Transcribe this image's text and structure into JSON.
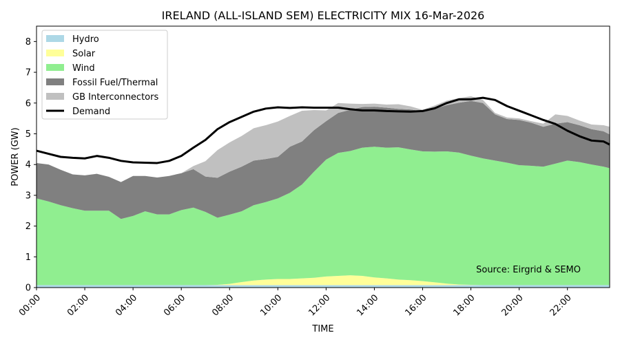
{
  "chart_data": {
    "type": "area",
    "title": "IRELAND (ALL-ISLAND SEM) ELECTRICITY MIX 16-Mar-2026",
    "xlabel": "TIME",
    "ylabel": "POWER (GW)",
    "ylim": [
      0,
      8.5
    ],
    "yticks": [
      "0",
      "1",
      "2",
      "3",
      "4",
      "5",
      "6",
      "7",
      "8"
    ],
    "xlim": [
      "00:00",
      "23:45"
    ],
    "xticks": [
      "00:00",
      "02:00",
      "04:00",
      "06:00",
      "08:00",
      "10:00",
      "12:00",
      "14:00",
      "16:00",
      "18:00",
      "20:00",
      "22:00"
    ],
    "grid": false,
    "legend_position": "top-left",
    "stacked": true,
    "x": [
      "00:00",
      "00:30",
      "01:00",
      "01:30",
      "02:00",
      "02:30",
      "03:00",
      "03:30",
      "04:00",
      "04:30",
      "05:00",
      "05:30",
      "06:00",
      "06:30",
      "07:00",
      "07:30",
      "08:00",
      "08:30",
      "09:00",
      "09:30",
      "10:00",
      "10:30",
      "11:00",
      "11:30",
      "12:00",
      "12:30",
      "13:00",
      "13:30",
      "14:00",
      "14:30",
      "15:00",
      "15:30",
      "16:00",
      "16:30",
      "17:00",
      "17:30",
      "18:00",
      "18:30",
      "19:00",
      "19:30",
      "20:00",
      "20:30",
      "21:00",
      "21:30",
      "22:00",
      "22:30",
      "23:00",
      "23:30",
      "23:45"
    ],
    "series": [
      {
        "name": "Hydro",
        "color": "#add8e6",
        "values": [
          0.08,
          0.08,
          0.08,
          0.08,
          0.08,
          0.08,
          0.08,
          0.08,
          0.08,
          0.08,
          0.08,
          0.08,
          0.08,
          0.08,
          0.08,
          0.08,
          0.08,
          0.08,
          0.08,
          0.08,
          0.08,
          0.08,
          0.08,
          0.08,
          0.08,
          0.08,
          0.08,
          0.08,
          0.08,
          0.08,
          0.08,
          0.08,
          0.08,
          0.08,
          0.08,
          0.08,
          0.08,
          0.08,
          0.08,
          0.08,
          0.08,
          0.08,
          0.08,
          0.08,
          0.08,
          0.08,
          0.08,
          0.08,
          0.08
        ]
      },
      {
        "name": "Solar",
        "color": "#ffff99",
        "values": [
          0,
          0,
          0,
          0,
          0,
          0,
          0,
          0,
          0,
          0,
          0,
          0,
          0,
          0,
          0,
          0.01,
          0.04,
          0.1,
          0.15,
          0.18,
          0.2,
          0.2,
          0.22,
          0.24,
          0.28,
          0.3,
          0.32,
          0.3,
          0.25,
          0.22,
          0.18,
          0.16,
          0.13,
          0.09,
          0.05,
          0.02,
          0.01,
          0,
          0,
          0,
          0,
          0,
          0,
          0,
          0,
          0,
          0,
          0,
          0
        ]
      },
      {
        "name": "Wind",
        "color": "#90ee90",
        "values": [
          2.82,
          2.72,
          2.6,
          2.5,
          2.42,
          2.42,
          2.42,
          2.15,
          2.25,
          2.4,
          2.3,
          2.3,
          2.44,
          2.52,
          2.38,
          2.18,
          2.25,
          2.3,
          2.45,
          2.52,
          2.62,
          2.8,
          3.05,
          3.45,
          3.8,
          4.0,
          4.04,
          4.17,
          4.25,
          4.25,
          4.3,
          4.25,
          4.22,
          4.25,
          4.3,
          4.29,
          4.2,
          4.12,
          4.05,
          3.98,
          3.9,
          3.88,
          3.85,
          3.95,
          4.05,
          4.0,
          3.92,
          3.85,
          3.8
        ]
      },
      {
        "name": "Fossil Fuel/Thermal",
        "color": "#808080",
        "values": [
          1.15,
          1.2,
          1.15,
          1.1,
          1.15,
          1.2,
          1.1,
          1.2,
          1.3,
          1.15,
          1.2,
          1.25,
          1.2,
          1.25,
          1.15,
          1.3,
          1.4,
          1.45,
          1.45,
          1.4,
          1.35,
          1.5,
          1.4,
          1.35,
          1.25,
          1.3,
          1.34,
          1.32,
          1.3,
          1.3,
          1.25,
          1.3,
          1.3,
          1.4,
          1.5,
          1.62,
          1.78,
          1.8,
          1.5,
          1.42,
          1.47,
          1.4,
          1.3,
          1.3,
          1.25,
          1.2,
          1.15,
          1.15,
          1.1
        ]
      },
      {
        "name": "GB Interconnectors",
        "color": "#c0c0c0",
        "values": [
          0,
          0,
          0,
          0,
          0,
          0,
          0,
          0,
          0,
          0,
          0,
          0,
          0,
          0.1,
          0.5,
          0.9,
          0.95,
          1.0,
          1.05,
          1.1,
          1.15,
          1.0,
          1.0,
          0.65,
          0.35,
          0.32,
          0.2,
          0.1,
          0.1,
          0.1,
          0.15,
          0.1,
          0.05,
          0.1,
          0.15,
          0.15,
          0.15,
          0.1,
          0.05,
          0.05,
          0.05,
          0.05,
          0.1,
          0.3,
          0.2,
          0.15,
          0.15,
          0.2,
          0.25
        ]
      }
    ],
    "demand": {
      "name": "Demand",
      "color": "#000000",
      "values": [
        4.45,
        4.35,
        4.25,
        4.22,
        4.2,
        4.28,
        4.22,
        4.12,
        4.07,
        4.06,
        4.05,
        4.12,
        4.28,
        4.55,
        4.8,
        5.15,
        5.38,
        5.55,
        5.72,
        5.82,
        5.86,
        5.84,
        5.86,
        5.85,
        5.85,
        5.85,
        5.8,
        5.76,
        5.76,
        5.74,
        5.73,
        5.72,
        5.74,
        5.83,
        6.0,
        6.12,
        6.12,
        6.17,
        6.1,
        5.9,
        5.75,
        5.6,
        5.45,
        5.32,
        5.1,
        4.92,
        4.78,
        4.75,
        4.65
      ]
    },
    "annotation": "Source: Eirgrid & SEMO"
  }
}
